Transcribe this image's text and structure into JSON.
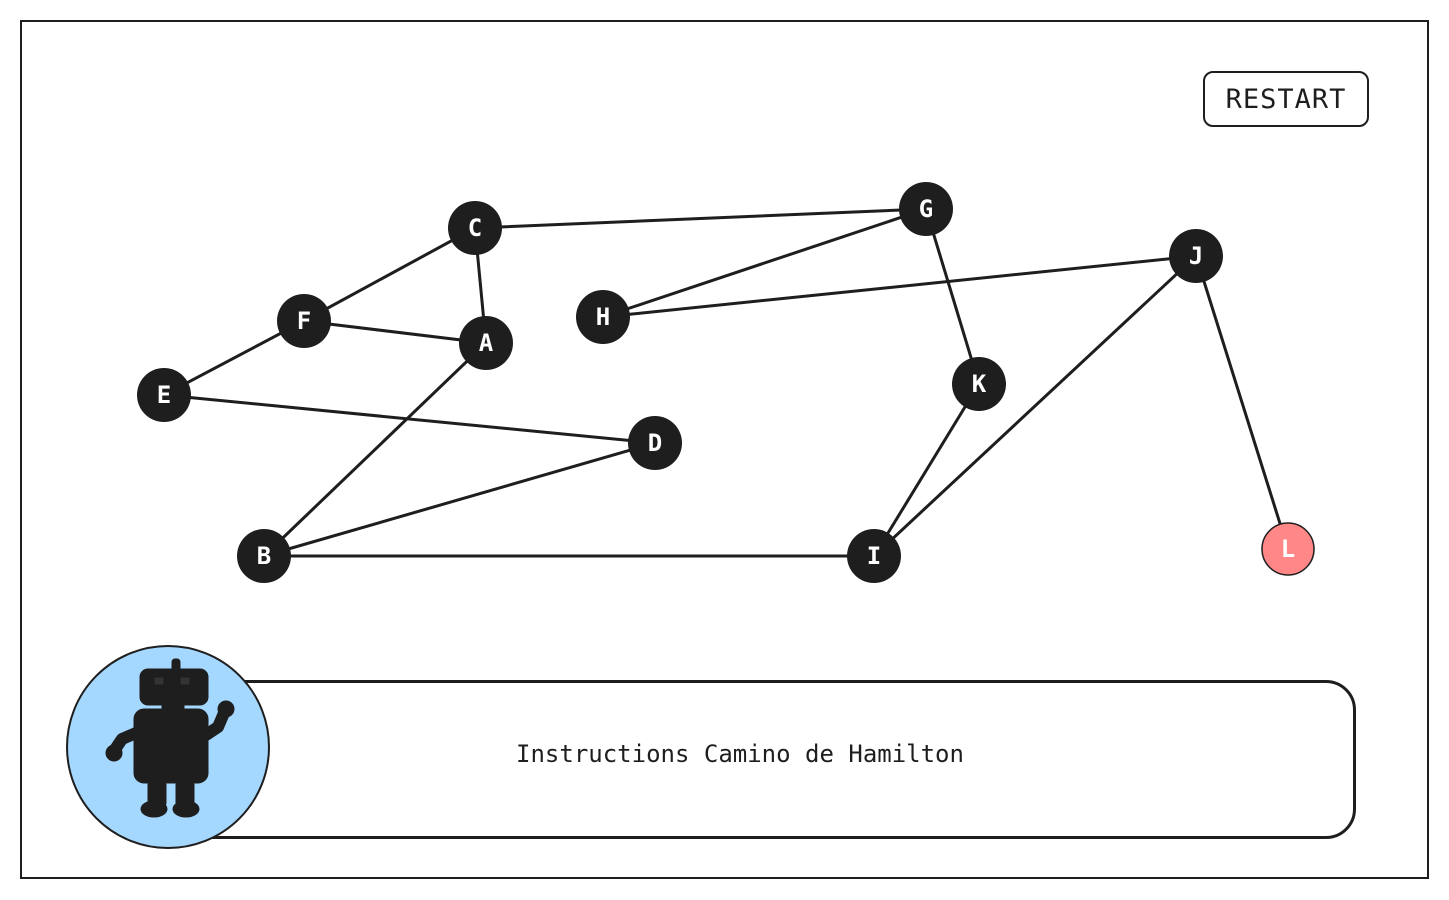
{
  "toolbar": {
    "restart_label": "RESTART"
  },
  "instructions": {
    "text": "Instructions Camino de Hamilton"
  },
  "avatar": {
    "icon": "robot-icon"
  },
  "colors": {
    "node": "#1e1e1e",
    "node_target": "#ff8787",
    "node_text": "#ffffff",
    "edge": "#1e1e1e",
    "avatar_bg": "#a5d8ff"
  },
  "graph": {
    "nodes": [
      {
        "id": "A",
        "label": "A"
      },
      {
        "id": "B",
        "label": "B"
      },
      {
        "id": "C",
        "label": "C"
      },
      {
        "id": "D",
        "label": "D"
      },
      {
        "id": "E",
        "label": "E"
      },
      {
        "id": "F",
        "label": "F"
      },
      {
        "id": "G",
        "label": "G"
      },
      {
        "id": "H",
        "label": "H"
      },
      {
        "id": "I",
        "label": "I"
      },
      {
        "id": "J",
        "label": "J"
      },
      {
        "id": "K",
        "label": "K"
      },
      {
        "id": "L",
        "label": "L",
        "highlighted": true
      }
    ],
    "edges": [
      [
        "C",
        "G"
      ],
      [
        "C",
        "F"
      ],
      [
        "C",
        "A"
      ],
      [
        "F",
        "A"
      ],
      [
        "F",
        "E"
      ],
      [
        "E",
        "D"
      ],
      [
        "A",
        "B"
      ],
      [
        "B",
        "D"
      ],
      [
        "B",
        "I"
      ],
      [
        "G",
        "H"
      ],
      [
        "G",
        "K"
      ],
      [
        "H",
        "J"
      ],
      [
        "K",
        "I"
      ],
      [
        "I",
        "J"
      ],
      [
        "J",
        "L"
      ]
    ]
  }
}
